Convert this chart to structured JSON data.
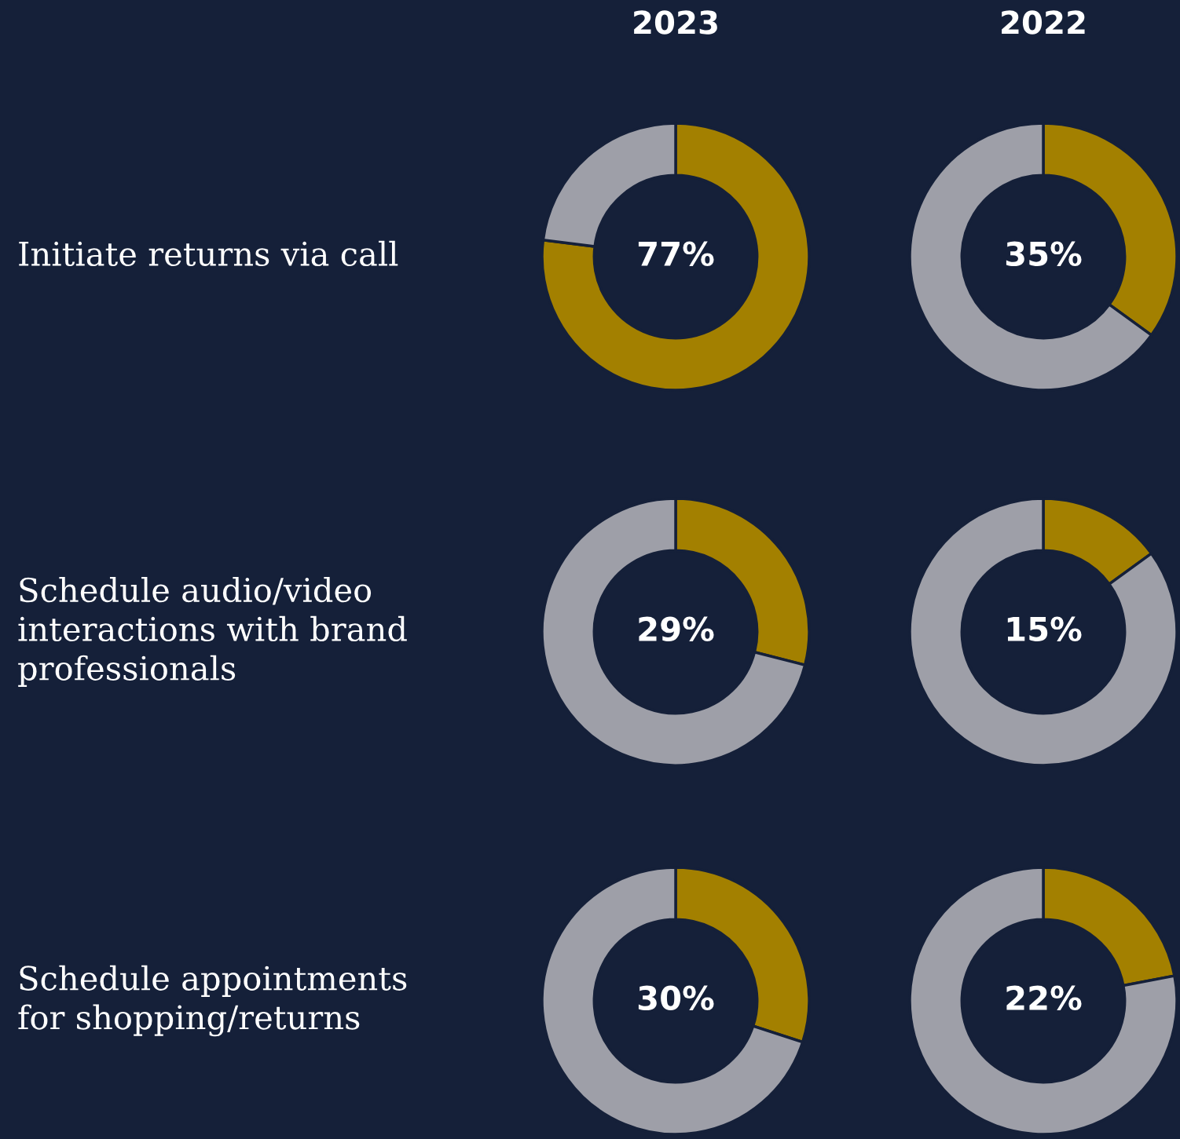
{
  "chart_data": [
    {
      "type": "donut",
      "title": "2023",
      "ylabel": "Initiate returns via call",
      "categories": [
        null,
        null
      ],
      "values": [
        77,
        23
      ],
      "colors": [
        "#a38000",
        "#9e9fa8"
      ],
      "value_labels": [
        "77%",
        null
      ]
    },
    {
      "type": "donut",
      "title": "2022",
      "categories": [
        null,
        null
      ],
      "values": [
        35,
        65
      ],
      "colors": [
        "#a38000",
        "#9e9fa8"
      ],
      "value_labels": [
        "35%",
        null
      ]
    },
    {
      "type": "donut",
      "ylabel": "Schedule audio/video\ninteractions with brand\nprofessionals",
      "categories": [
        null,
        null
      ],
      "values": [
        29,
        71
      ],
      "colors": [
        "#a38000",
        "#9e9fa8"
      ],
      "value_labels": [
        "29%",
        null
      ]
    },
    {
      "type": "donut",
      "categories": [
        null,
        null
      ],
      "values": [
        15,
        85
      ],
      "colors": [
        "#a38000",
        "#9e9fa8"
      ],
      "value_labels": [
        "15%",
        null
      ]
    },
    {
      "type": "donut",
      "ylabel": "Schedule appointments\nfor shopping/returns",
      "categories": [
        null,
        null
      ],
      "values": [
        30,
        70
      ],
      "colors": [
        "#a38000",
        "#9e9fa8"
      ],
      "value_labels": [
        "30%",
        null
      ]
    },
    {
      "type": "donut",
      "categories": [
        null,
        null
      ],
      "values": [
        22,
        78
      ],
      "colors": [
        "#a38000",
        "#9e9fa8"
      ],
      "value_labels": [
        "22%",
        null
      ]
    }
  ]
}
